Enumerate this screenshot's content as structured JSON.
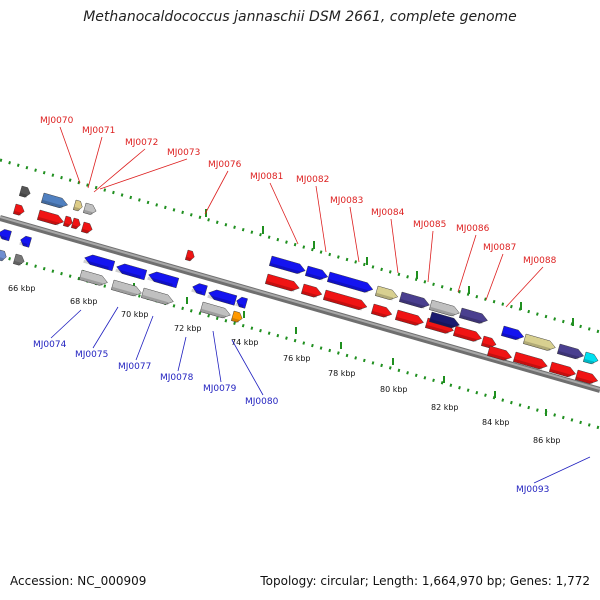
{
  "title": "Methanocaldococcus jannaschii DSM 2661, complete genome",
  "footer": {
    "accession": "Accession: NC_000909",
    "summary": "Topology: circular; Length: 1,664,970 bp; Genes: 1,772"
  },
  "colors": {
    "backbone": "#8c8c8c",
    "tick": "#1f8f1f",
    "label_top": "#dd1f1f",
    "label_bottom": "#1f1fbf",
    "forward_blue": "#1414f0",
    "reverse_red": "#f01414",
    "gray": "#c0c0c0",
    "navy": "#4a3f8f",
    "khaki": "#d8d090",
    "cyan": "#00e0f0",
    "orange": "#ff9900"
  },
  "scale": {
    "ticks": [
      {
        "label": "66 kbp"
      },
      {
        "label": "68 kbp"
      },
      {
        "label": "70 kbp"
      },
      {
        "label": "72 kbp"
      },
      {
        "label": "74 kbp"
      },
      {
        "label": "76 kbp"
      },
      {
        "label": "78 kbp"
      },
      {
        "label": "80 kbp"
      },
      {
        "label": "82 kbp"
      },
      {
        "label": "84 kbp"
      },
      {
        "label": "86 kbp"
      }
    ]
  },
  "labels_top": [
    {
      "text": "MJ0070"
    },
    {
      "text": "MJ0071"
    },
    {
      "text": "MJ0072"
    },
    {
      "text": "MJ0073"
    },
    {
      "text": "MJ0076"
    },
    {
      "text": "MJ0081"
    },
    {
      "text": "MJ0082"
    },
    {
      "text": "MJ0083"
    },
    {
      "text": "MJ0084"
    },
    {
      "text": "MJ0085"
    },
    {
      "text": "MJ0086"
    },
    {
      "text": "MJ0087"
    },
    {
      "text": "MJ0088"
    }
  ],
  "labels_bottom": [
    {
      "text": "MJ0074"
    },
    {
      "text": "MJ0075"
    },
    {
      "text": "MJ0077"
    },
    {
      "text": "MJ0078"
    },
    {
      "text": "MJ0079"
    },
    {
      "text": "MJ0080"
    },
    {
      "text": "MJ0093"
    }
  ]
}
